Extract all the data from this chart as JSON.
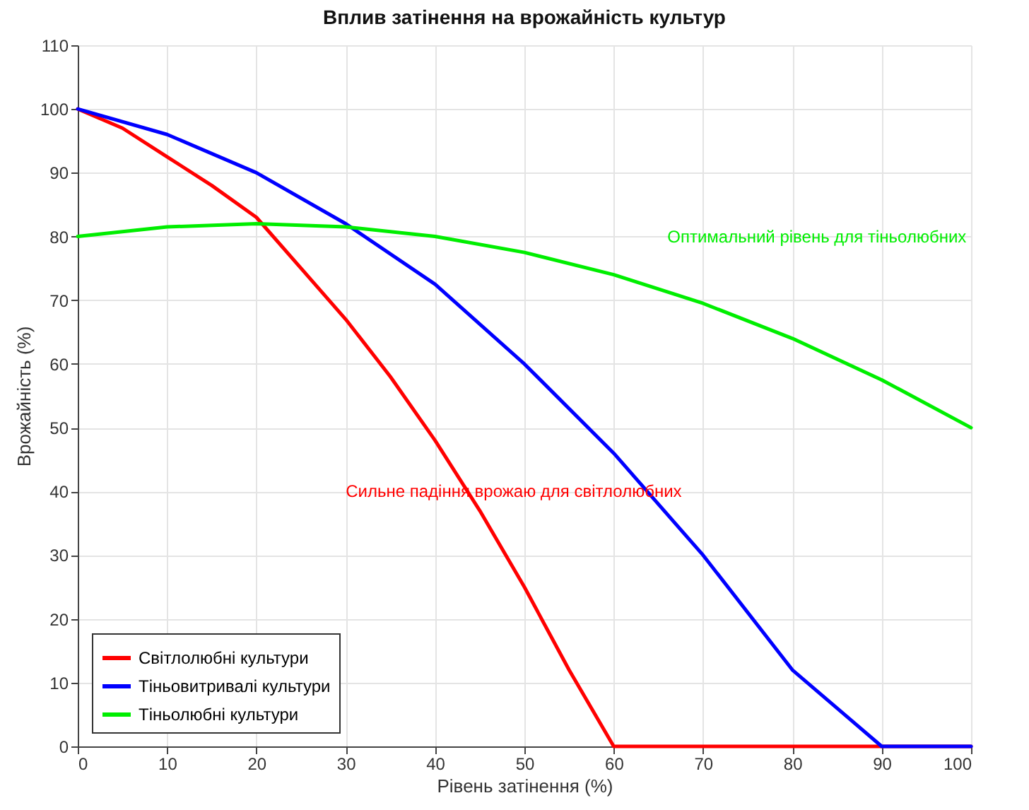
{
  "chart_data": {
    "type": "line",
    "title": "Вплив затінення на врожайність культур",
    "xlabel": "Рівень затінення (%)",
    "ylabel": "Врожайність (%)",
    "xlim": [
      0,
      100
    ],
    "xticks": [
      0,
      10,
      20,
      30,
      40,
      50,
      60,
      70,
      80,
      90,
      100
    ],
    "ylim": [
      0,
      110
    ],
    "yticks": [
      0,
      10,
      20,
      30,
      40,
      50,
      60,
      70,
      80,
      90,
      100,
      110
    ],
    "grid": true,
    "legend": "bottom left",
    "line_style": "solid",
    "marker": "none",
    "series": [
      {
        "name": "Світлолюбні культури",
        "color": "#ff0000",
        "x": [
          0,
          5,
          10,
          15,
          20,
          25,
          30,
          35,
          40,
          45,
          50,
          55,
          60,
          70,
          80,
          90,
          100
        ],
        "values": [
          100,
          97,
          92.5,
          88,
          83,
          75,
          67,
          58,
          48,
          37,
          25,
          12,
          0,
          0,
          0,
          0,
          0
        ]
      },
      {
        "name": "Тіньовитривалі культури",
        "color": "#0000ff",
        "x": [
          0,
          10,
          20,
          30,
          40,
          50,
          60,
          70,
          80,
          90,
          100
        ],
        "values": [
          100,
          96,
          90,
          82,
          72.5,
          60,
          46,
          30,
          12,
          0,
          0
        ]
      },
      {
        "name": "Тіньолюбні культури",
        "color": "#00ee00",
        "x": [
          0,
          10,
          20,
          30,
          40,
          50,
          60,
          70,
          80,
          90,
          100
        ],
        "values": [
          80,
          81.5,
          82,
          81.5,
          80,
          77.5,
          74,
          69.5,
          64,
          57.5,
          50
        ]
      }
    ],
    "annotations": [
      "Оптимальний рівень для тіньолюбних",
      "Сильне падіння врожаю для світлолюбних"
    ]
  }
}
